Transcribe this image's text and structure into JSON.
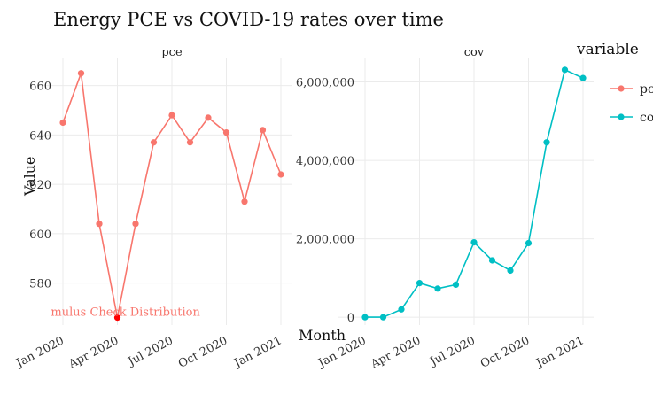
{
  "chart_data": {
    "type": "line",
    "title": "Energy PCE vs COVID-19 rates over time",
    "xlabel": "Month",
    "ylabel": "Value",
    "x_tick_labels": [
      "Jan 2020",
      "Apr 2020",
      "Jul 2020",
      "Oct 2020",
      "Jan 2021"
    ],
    "legend": {
      "title": "variable",
      "entries": [
        {
          "name": "pce",
          "color": "#F8766D"
        },
        {
          "name": "cov",
          "color": "#00BFC4"
        }
      ]
    },
    "grid": true,
    "facets": [
      {
        "name": "pce",
        "color": "#F8766D",
        "x": [
          "2020-01",
          "2020-02",
          "2020-03",
          "2020-04",
          "2020-05",
          "2020-06",
          "2020-07",
          "2020-08",
          "2020-09",
          "2020-10",
          "2020-11",
          "2020-12",
          "2021-01"
        ],
        "values": [
          645,
          665,
          604,
          566,
          604,
          637,
          648,
          637,
          647,
          641,
          613,
          642,
          624
        ],
        "ylim": [
          563,
          671
        ],
        "y_ticks": [
          580,
          600,
          620,
          640,
          660
        ],
        "y_tick_labels": [
          "580",
          "600",
          "620",
          "640",
          "660"
        ],
        "annotation": {
          "text": "Stimulus Check Distribution",
          "x": "2020-04",
          "y": 566,
          "color": "#F8766D"
        }
      },
      {
        "name": "cov",
        "color": "#00BFC4",
        "x": [
          "2020-01",
          "2020-02",
          "2020-03",
          "2020-04",
          "2020-05",
          "2020-06",
          "2020-07",
          "2020-08",
          "2020-09",
          "2020-10",
          "2020-11",
          "2020-12",
          "2021-01"
        ],
        "values": [
          0,
          0,
          200000,
          870000,
          730000,
          830000,
          1910000,
          1450000,
          1190000,
          1890000,
          4460000,
          6310000,
          6100000
        ],
        "ylim": [
          -200000,
          6600000
        ],
        "y_ticks": [
          0,
          2000000,
          4000000,
          6000000
        ],
        "y_tick_labels": [
          "0",
          "2,000,000",
          "4,000,000",
          "6,000,000"
        ]
      }
    ]
  }
}
